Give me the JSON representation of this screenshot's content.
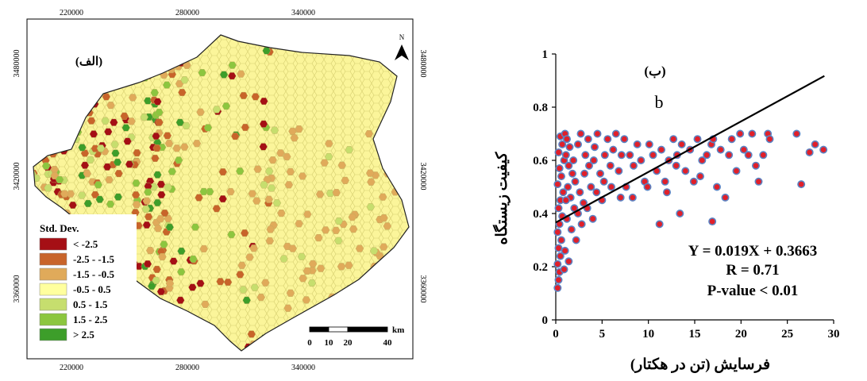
{
  "map": {
    "panel_label": "(الف)",
    "north_label": "N",
    "top_ticks": [
      "220000",
      "280000",
      "340000"
    ],
    "bottom_ticks": [
      "220000",
      "280000",
      "340000"
    ],
    "left_ticks": [
      "3480000",
      "3420000",
      "3360000"
    ],
    "right_ticks": [
      "3480000",
      "3420000",
      "3360000"
    ],
    "legend": {
      "title": "Std. Dev.",
      "items": [
        {
          "label": "< -2.5",
          "color": "#a50f15"
        },
        {
          "label": "-2.5 - -1.5",
          "color": "#c8642a"
        },
        {
          "label": "-1.5 - -0.5",
          "color": "#e0aa5a"
        },
        {
          "label": "-0.5 - 0.5",
          "color": "#ffff9e"
        },
        {
          "label": "0.5 - 1.5",
          "color": "#c6de6e"
        },
        {
          "label": "1.5 - 2.5",
          "color": "#8cc63f"
        },
        {
          "label": "> 2.5",
          "color": "#3d9e2a"
        }
      ]
    },
    "scalebar": {
      "unit": "km",
      "ticks": [
        "0",
        "10",
        "20",
        "40"
      ]
    }
  },
  "chart_data": {
    "type": "scatter",
    "panel_label": "(ب)",
    "subpanel_letter": "b",
    "xlabel": "فرسایش (تن در هکتار)",
    "ylabel": "کیفیت زیستگاه",
    "xlim": [
      0,
      30
    ],
    "ylim": [
      0,
      1
    ],
    "xticks": [
      0,
      5,
      10,
      15,
      20,
      25,
      30
    ],
    "yticks": [
      0,
      0.2,
      0.4,
      0.6,
      0.8,
      1
    ],
    "ytick_labels": [
      "0",
      "0.2",
      "0.4",
      "0.6",
      "0.8",
      "1"
    ],
    "regression": {
      "slope": 0.019,
      "intercept": 0.3663
    },
    "annotations": [
      "Y = 0.019X + 0.3663",
      "R = 0.71",
      "P-value < 0.01"
    ],
    "marker": {
      "fill": "#e0202a",
      "stroke": "#5b84c4"
    },
    "points": [
      [
        0.2,
        0.12
      ],
      [
        0.3,
        0.15
      ],
      [
        0.4,
        0.18
      ],
      [
        0.2,
        0.21
      ],
      [
        0.5,
        0.24
      ],
      [
        0.3,
        0.27
      ],
      [
        0.6,
        0.3
      ],
      [
        0.2,
        0.33
      ],
      [
        0.4,
        0.36
      ],
      [
        0.7,
        0.39
      ],
      [
        0.3,
        0.42
      ],
      [
        0.5,
        0.45
      ],
      [
        0.8,
        0.48
      ],
      [
        0.2,
        0.51
      ],
      [
        0.6,
        0.54
      ],
      [
        0.4,
        0.57
      ],
      [
        0.9,
        0.6
      ],
      [
        0.3,
        0.63
      ],
      [
        0.7,
        0.66
      ],
      [
        0.5,
        0.69
      ],
      [
        1.0,
        0.7
      ],
      [
        1.2,
        0.68
      ],
      [
        1.5,
        0.65
      ],
      [
        1.1,
        0.62
      ],
      [
        1.4,
        0.58
      ],
      [
        1.8,
        0.55
      ],
      [
        1.3,
        0.5
      ],
      [
        1.6,
        0.46
      ],
      [
        2.0,
        0.42
      ],
      [
        1.2,
        0.38
      ],
      [
        1.7,
        0.34
      ],
      [
        2.2,
        0.3
      ],
      [
        1.0,
        0.26
      ],
      [
        1.4,
        0.22
      ],
      [
        0.9,
        0.19
      ],
      [
        1.1,
        0.45
      ],
      [
        1.9,
        0.6
      ],
      [
        2.4,
        0.66
      ],
      [
        2.7,
        0.7
      ],
      [
        2.1,
        0.52
      ],
      [
        2.6,
        0.48
      ],
      [
        3.0,
        0.44
      ],
      [
        2.4,
        0.4
      ],
      [
        2.8,
        0.36
      ],
      [
        3.2,
        0.62
      ],
      [
        3.5,
        0.68
      ],
      [
        3.1,
        0.55
      ],
      [
        3.8,
        0.5
      ],
      [
        3.4,
        0.42
      ],
      [
        4.0,
        0.38
      ],
      [
        3.6,
        0.58
      ],
      [
        4.2,
        0.65
      ],
      [
        4.5,
        0.7
      ],
      [
        4.1,
        0.6
      ],
      [
        4.8,
        0.55
      ],
      [
        4.4,
        0.48
      ],
      [
        5.0,
        0.45
      ],
      [
        5.3,
        0.62
      ],
      [
        5.6,
        0.68
      ],
      [
        5.2,
        0.52
      ],
      [
        5.9,
        0.58
      ],
      [
        6.2,
        0.64
      ],
      [
        6.5,
        0.7
      ],
      [
        6.0,
        0.5
      ],
      [
        6.8,
        0.56
      ],
      [
        7.1,
        0.62
      ],
      [
        7.4,
        0.68
      ],
      [
        7.0,
        0.46
      ],
      [
        7.6,
        0.5
      ],
      [
        8.0,
        0.62
      ],
      [
        8.4,
        0.58
      ],
      [
        8.8,
        0.66
      ],
      [
        9.2,
        0.6
      ],
      [
        9.6,
        0.52
      ],
      [
        10.1,
        0.66
      ],
      [
        10.5,
        0.62
      ],
      [
        10.9,
        0.56
      ],
      [
        11.4,
        0.64
      ],
      [
        11.8,
        0.52
      ],
      [
        12.2,
        0.6
      ],
      [
        12.7,
        0.68
      ],
      [
        13.1,
        0.62
      ],
      [
        13.6,
        0.66
      ],
      [
        14.0,
        0.56
      ],
      [
        14.5,
        0.64
      ],
      [
        14.9,
        0.52
      ],
      [
        15.3,
        0.68
      ],
      [
        15.8,
        0.6
      ],
      [
        16.3,
        0.62
      ],
      [
        16.8,
        0.66
      ],
      [
        17.0,
        0.68
      ],
      [
        17.4,
        0.5
      ],
      [
        17.8,
        0.64
      ],
      [
        18.3,
        0.46
      ],
      [
        18.7,
        0.62
      ],
      [
        19.0,
        0.68
      ],
      [
        19.5,
        0.56
      ],
      [
        19.9,
        0.7
      ],
      [
        20.3,
        0.64
      ],
      [
        20.8,
        0.62
      ],
      [
        21.2,
        0.7
      ],
      [
        21.6,
        0.58
      ],
      [
        21.9,
        0.52
      ],
      [
        22.4,
        0.62
      ],
      [
        22.9,
        0.7
      ],
      [
        23.1,
        0.68
      ],
      [
        26.0,
        0.7
      ],
      [
        26.5,
        0.51
      ],
      [
        27.4,
        0.63
      ],
      [
        28.0,
        0.66
      ],
      [
        28.9,
        0.64
      ],
      [
        11.2,
        0.36
      ],
      [
        13.4,
        0.4
      ],
      [
        16.9,
        0.37
      ],
      [
        13.0,
        0.58
      ],
      [
        15.6,
        0.54
      ],
      [
        9.9,
        0.5
      ],
      [
        8.3,
        0.46
      ],
      [
        12.0,
        0.48
      ]
    ]
  }
}
